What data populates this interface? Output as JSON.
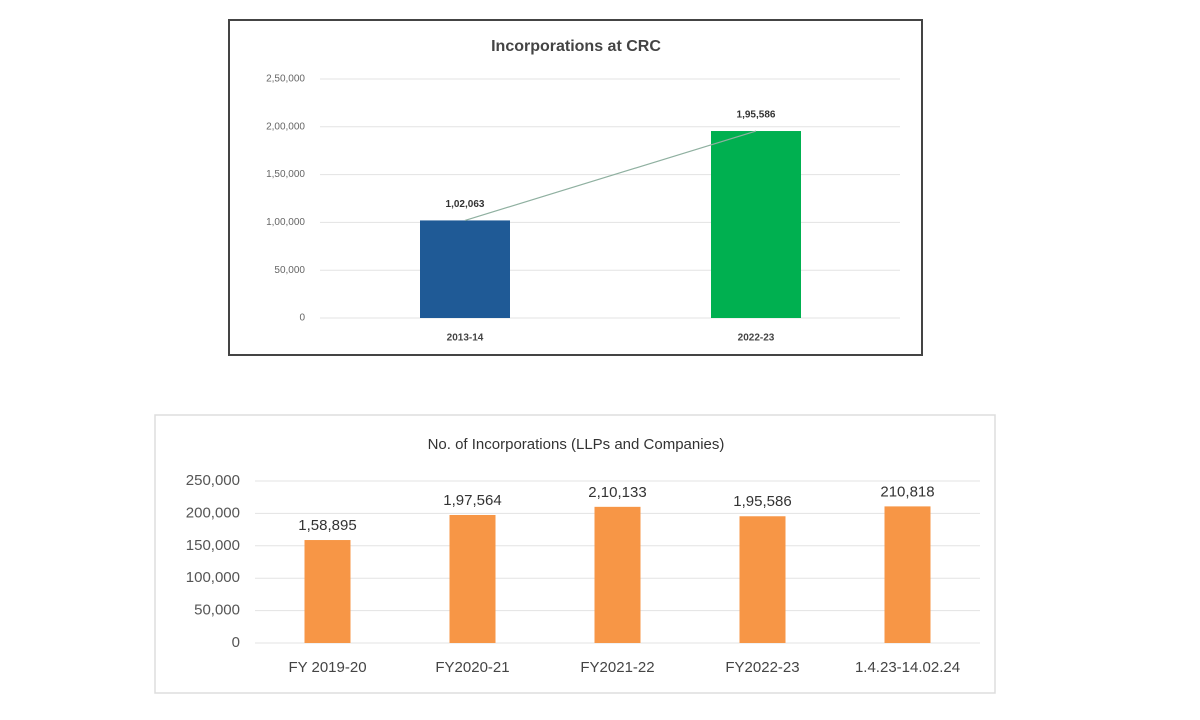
{
  "chart_data": [
    {
      "type": "bar",
      "title": "Incorporations at CRC",
      "categories": [
        "2013-14",
        "2022-23"
      ],
      "values": [
        102063,
        195586
      ],
      "value_labels": [
        "1,02,063",
        "1,95,586"
      ],
      "colors": [
        "#1f5a96",
        "#00b050"
      ],
      "trendline": true,
      "ylim": [
        0,
        250000
      ],
      "yticks": [
        0,
        {
          "value": 50000,
          "label": "50,000"
        },
        {
          "value": 100000,
          "label": "1,00,000"
        },
        {
          "value": 150000,
          "label": "1,50,000"
        },
        {
          "value": 200000,
          "label": "2,00,000"
        },
        {
          "value": 250000,
          "label": "2,50,000"
        }
      ],
      "grid": true
    },
    {
      "type": "bar",
      "title": "No. of Incorporations  (LLPs and Companies)",
      "categories": [
        "FY 2019-20",
        "FY2020-21",
        "FY2021-22",
        "FY2022-23",
        "1.4.23-14.02.24"
      ],
      "values": [
        158895,
        197564,
        210133,
        195586,
        210818
      ],
      "value_labels": [
        "1,58,895",
        "1,97,564",
        "2,10,133",
        "1,95,586",
        "210,818"
      ],
      "color": "#f79646",
      "ylim": [
        0,
        250000
      ],
      "yticks": [
        0,
        {
          "value": 50000,
          "label": "50,000"
        },
        {
          "value": 100000,
          "label": "100,000"
        },
        {
          "value": 150000,
          "label": "150,000"
        },
        {
          "value": 200000,
          "label": "200,000"
        },
        {
          "value": 250000,
          "label": "250,000"
        }
      ],
      "grid": true
    }
  ]
}
